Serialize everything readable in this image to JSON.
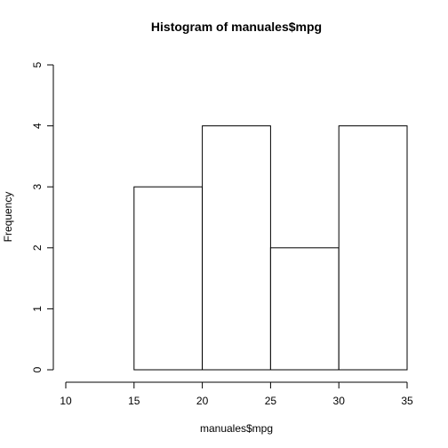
{
  "chart_data": {
    "type": "bar",
    "title": "Histogram of manuales$mpg",
    "xlabel": "manuales$mpg",
    "ylabel": "Frequency",
    "bins": [
      {
        "from": 15,
        "to": 20,
        "count": 3
      },
      {
        "from": 20,
        "to": 25,
        "count": 4
      },
      {
        "from": 25,
        "to": 30,
        "count": 2
      },
      {
        "from": 30,
        "to": 35,
        "count": 4
      }
    ],
    "xlim": [
      10,
      35
    ],
    "ylim": [
      0,
      5
    ],
    "x_ticks": [
      10,
      15,
      20,
      25,
      30,
      35
    ],
    "y_ticks": [
      0,
      1,
      2,
      3,
      4,
      5
    ],
    "grid": false,
    "bar_fill": "#ffffff",
    "bar_stroke": "#000000"
  }
}
